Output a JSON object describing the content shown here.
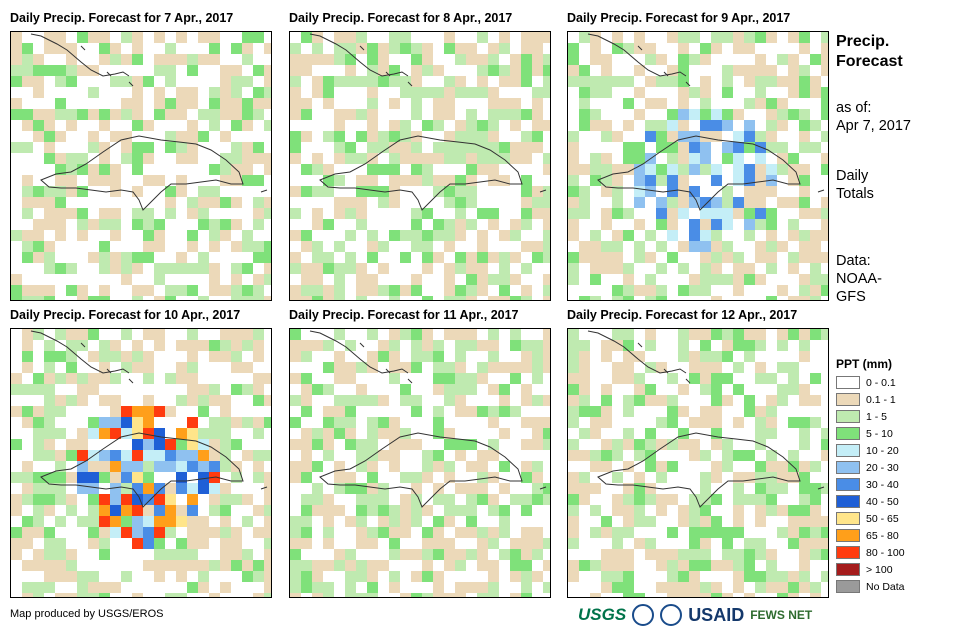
{
  "panels": [
    {
      "title": "Daily Precip. Forecast for 7 Apr., 2017",
      "seed": 7,
      "intensity": 0
    },
    {
      "title": "Daily Precip. Forecast for 8 Apr., 2017",
      "seed": 8,
      "intensity": 1
    },
    {
      "title": "Daily Precip. Forecast for 9 Apr., 2017",
      "seed": 9,
      "intensity": 2
    },
    {
      "title": "Daily Precip. Forecast for 10 Apr., 2017",
      "seed": 10,
      "intensity": 3
    },
    {
      "title": "Daily Precip. Forecast for 11 Apr., 2017",
      "seed": 11,
      "intensity": 1
    },
    {
      "title": "Daily Precip. Forecast for 12 Apr., 2017",
      "seed": 12,
      "intensity": 0
    }
  ],
  "side": {
    "title_line1": "Precip.",
    "title_line2": "Forecast",
    "asof_line1": "as of:",
    "asof_line2": "Apr 7, 2017",
    "daily_line1": "Daily",
    "daily_line2": "Totals",
    "data_line1": "Data:",
    "data_line2": "NOAA-",
    "data_line3": "GFS"
  },
  "legend": {
    "title": "PPT (mm)",
    "items": [
      {
        "label": "0 - 0.1",
        "color": "#ffffff"
      },
      {
        "label": "0.1 - 1",
        "color": "#ecd9b9"
      },
      {
        "label": "1 - 5",
        "color": "#bfeab0"
      },
      {
        "label": "5 - 10",
        "color": "#7fe17a"
      },
      {
        "label": "10 - 20",
        "color": "#c4eef7"
      },
      {
        "label": "20 - 30",
        "color": "#8fc1f0"
      },
      {
        "label": "30 - 40",
        "color": "#4a8de6"
      },
      {
        "label": "40 - 50",
        "color": "#1f5fd6"
      },
      {
        "label": "50 - 65",
        "color": "#ffe58a"
      },
      {
        "label": "65 - 80",
        "color": "#ff9f1a"
      },
      {
        "label": "80 - 100",
        "color": "#ff3b0f"
      },
      {
        "label": "> 100",
        "color": "#a51c1c"
      },
      {
        "label": "No Data",
        "color": "#9a9a9a"
      }
    ]
  },
  "footer": {
    "credit": "Map produced by USGS/EROS"
  },
  "logos": {
    "usgs": "USGS",
    "usaid": "USAID",
    "fews": "FEWS NET"
  }
}
